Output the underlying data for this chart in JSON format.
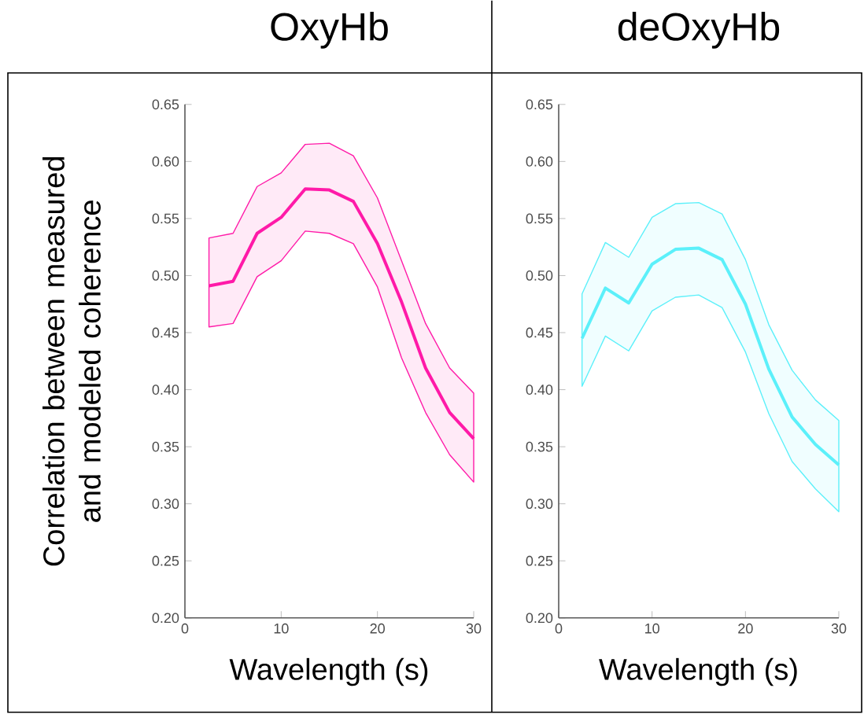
{
  "chart_data": [
    {
      "type": "line",
      "title": "OxyHb",
      "xlabel": "Wavelength (s)",
      "ylabel": "Correlation between measured and modeled coherence",
      "x": [
        2.5,
        5,
        7.5,
        10,
        12.5,
        15,
        17.5,
        20,
        22.5,
        25,
        27.5,
        30
      ],
      "series": [
        {
          "color": "#ff1aa8",
          "values": [
            0.491,
            0.495,
            0.537,
            0.551,
            0.576,
            0.575,
            0.565,
            0.528,
            0.477,
            0.419,
            0.38,
            0.357
          ],
          "lower": [
            0.455,
            0.458,
            0.499,
            0.513,
            0.539,
            0.537,
            0.528,
            0.49,
            0.428,
            0.38,
            0.343,
            0.319
          ],
          "upper": [
            0.533,
            0.537,
            0.578,
            0.59,
            0.615,
            0.616,
            0.605,
            0.568,
            0.513,
            0.458,
            0.419,
            0.397
          ]
        }
      ],
      "xlim": [
        0,
        30
      ],
      "xticks": [
        0,
        10,
        20,
        30
      ],
      "ylim": [
        0.2,
        0.65
      ],
      "yticks": [
        {
          "value": 0.2,
          "label": "0.20"
        },
        {
          "value": 0.25,
          "label": "0.25"
        },
        {
          "value": 0.3,
          "label": "0.30"
        },
        {
          "value": 0.35,
          "label": "0.35"
        },
        {
          "value": 0.4,
          "label": "0.40"
        },
        {
          "value": 0.45,
          "label": "0.45"
        },
        {
          "value": 0.5,
          "label": "0.50"
        },
        {
          "value": 0.55,
          "label": "0.55"
        },
        {
          "value": 0.6,
          "label": "0.60"
        },
        {
          "value": 0.65,
          "label": "0.65"
        }
      ]
    },
    {
      "type": "line",
      "title": "deOxyHb",
      "xlabel": "Wavelength (s)",
      "x": [
        2.5,
        5,
        7.5,
        10,
        12.5,
        15,
        17.5,
        20,
        22.5,
        25,
        27.5,
        30
      ],
      "series": [
        {
          "color": "#5cf0fa",
          "values": [
            0.445,
            0.489,
            0.476,
            0.51,
            0.523,
            0.524,
            0.514,
            0.475,
            0.418,
            0.376,
            0.352,
            0.334
          ],
          "lower": [
            0.403,
            0.447,
            0.434,
            0.469,
            0.481,
            0.483,
            0.472,
            0.433,
            0.379,
            0.337,
            0.313,
            0.293
          ],
          "upper": [
            0.484,
            0.529,
            0.516,
            0.551,
            0.563,
            0.564,
            0.554,
            0.514,
            0.457,
            0.417,
            0.391,
            0.373
          ]
        }
      ],
      "xlim": [
        0,
        30
      ],
      "xticks": [
        0,
        10,
        20,
        30
      ],
      "ylim": [
        0.2,
        0.65
      ],
      "yticks": [
        {
          "value": 0.2,
          "label": "0.20"
        },
        {
          "value": 0.25,
          "label": "0.25"
        },
        {
          "value": 0.3,
          "label": "0.30"
        },
        {
          "value": 0.35,
          "label": "0.35"
        },
        {
          "value": 0.4,
          "label": "0.40"
        },
        {
          "value": 0.45,
          "label": "0.45"
        },
        {
          "value": 0.5,
          "label": "0.50"
        },
        {
          "value": 0.55,
          "label": "0.55"
        },
        {
          "value": 0.6,
          "label": "0.60"
        },
        {
          "value": 0.65,
          "label": "0.65"
        }
      ]
    }
  ]
}
